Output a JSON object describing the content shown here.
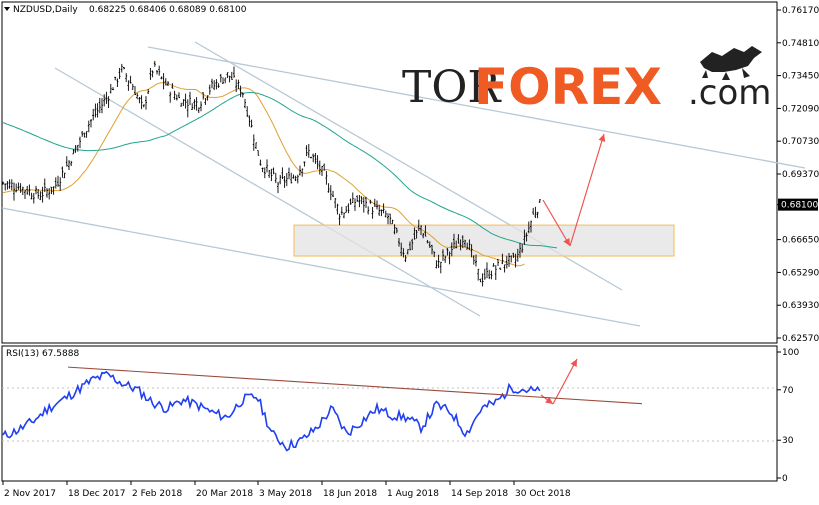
{
  "header": {
    "symbol": "NZDUSD,Daily",
    "ohlc": "0.68225 0.68406 0.68089 0.68100"
  },
  "logo": {
    "part1": "TOR",
    "part2": "FOREX",
    "part3": ".com",
    "icon": "bull-bear-icon"
  },
  "colors": {
    "bars": "#000000",
    "ma_fast": "#e0a030",
    "ma_slow": "#21a58f",
    "channel": "#b8c8d4",
    "zone_fill": "#e3e3e3",
    "zone_border": "#f5c46e",
    "forecast": "#ef5350",
    "rsi": "#1f3ff0",
    "rsi_trend": "#9b4a3a",
    "price_tag": "#000000",
    "logo_orange": "#f05a23"
  },
  "chart_data": [
    {
      "type": "line",
      "title": "NZDUSD,Daily",
      "subtitle": "0.68225 0.68406 0.68089 0.68100",
      "xlabel": "",
      "ylabel": "",
      "x_ticks": [
        "2 Nov 2017",
        "18 Dec 2017",
        "2 Feb 2018",
        "20 Mar 2018",
        "3 May 2018",
        "18 Jun 2018",
        "1 Aug 2018",
        "14 Sep 2018",
        "30 Oct 2018"
      ],
      "ylim": [
        0.6257,
        0.7617
      ],
      "y_ticks": [
        "0.76170",
        "0.74810",
        "0.73450",
        "0.72090",
        "0.70730",
        "0.69370",
        "0.68100",
        "0.66650",
        "0.65290",
        "0.63930",
        "0.62570"
      ],
      "last_price": "0.68100",
      "close_series": [
        [
          "2017-11-02",
          0.69
        ],
        [
          "2017-11-15",
          0.688
        ],
        [
          "2017-11-27",
          0.685
        ],
        [
          "2017-12-08",
          0.688
        ],
        [
          "2017-12-18",
          0.698
        ],
        [
          "2018-01-02",
          0.715
        ],
        [
          "2018-01-15",
          0.726
        ],
        [
          "2018-01-25",
          0.737
        ],
        [
          "2018-02-02",
          0.73
        ],
        [
          "2018-02-09",
          0.72
        ],
        [
          "2018-02-16",
          0.738
        ],
        [
          "2018-02-26",
          0.73
        ],
        [
          "2018-03-08",
          0.724
        ],
        [
          "2018-03-20",
          0.723
        ],
        [
          "2018-03-28",
          0.729
        ],
        [
          "2018-04-10",
          0.735
        ],
        [
          "2018-04-20",
          0.728
        ],
        [
          "2018-05-03",
          0.698
        ],
        [
          "2018-05-15",
          0.69
        ],
        [
          "2018-05-28",
          0.693
        ],
        [
          "2018-06-06",
          0.703
        ],
        [
          "2018-06-18",
          0.692
        ],
        [
          "2018-06-28",
          0.677
        ],
        [
          "2018-07-10",
          0.683
        ],
        [
          "2018-07-20",
          0.68
        ],
        [
          "2018-08-01",
          0.676
        ],
        [
          "2018-08-13",
          0.66
        ],
        [
          "2018-08-24",
          0.672
        ],
        [
          "2018-09-05",
          0.656
        ],
        [
          "2018-09-14",
          0.662
        ],
        [
          "2018-09-24",
          0.668
        ],
        [
          "2018-10-05",
          0.65
        ],
        [
          "2018-10-12",
          0.653
        ],
        [
          "2018-10-22",
          0.657
        ],
        [
          "2018-10-30",
          0.658
        ],
        [
          "2018-11-05",
          0.666
        ],
        [
          "2018-11-12",
          0.678
        ],
        [
          "2018-11-16",
          0.681
        ]
      ],
      "moving_averages": [
        {
          "name": "",
          "color": "#e0a030"
        },
        {
          "name": "",
          "color": "#21a58f"
        }
      ],
      "annotations": [
        "support-resistance zone 0.6655–0.6725",
        "descending trend channel",
        "forecast: pullback then rise"
      ],
      "grid": false,
      "legend": "none"
    },
    {
      "type": "line",
      "title": "RSI(13) 67.5888",
      "ylim": [
        0,
        100
      ],
      "y_ticks": [
        "100",
        "70",
        "30",
        "0"
      ],
      "levels": [
        70,
        30
      ],
      "last_value": 67.5888,
      "series": [
        {
          "name": "",
          "values": [
            33,
            38,
            45,
            55,
            62,
            70,
            78,
            82,
            75,
            70,
            60,
            55,
            62,
            58,
            52,
            48,
            62,
            65,
            35,
            25,
            30,
            40,
            55,
            35,
            45,
            55,
            50,
            48,
            40,
            58,
            52,
            35,
            55,
            60,
            72,
            70,
            68
          ]
        }
      ],
      "annotations": [
        "descending RSI trend line broken",
        "forecast: retest then rise"
      ],
      "grid": false,
      "legend": "none"
    }
  ]
}
